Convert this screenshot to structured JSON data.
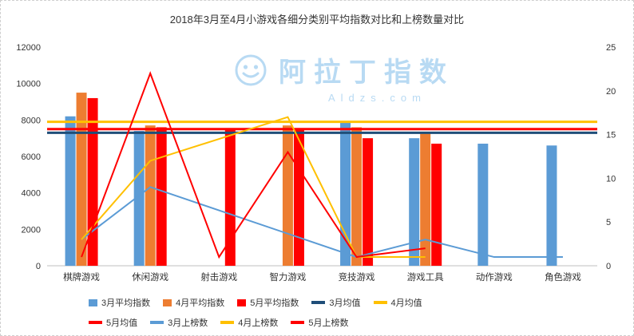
{
  "watermark": {
    "text": "阿拉丁指数",
    "subtext": "Aldzs.com"
  },
  "chart_data": {
    "type": "bar",
    "title": "2018年3月至4月小游戏各细分类别平均指数对比和上榜数量对比",
    "categories": [
      "棋牌游戏",
      "休闲游戏",
      "射击游戏",
      "智力游戏",
      "竞技游戏",
      "游戏工具",
      "动作游戏",
      "角色游戏"
    ],
    "left_axis": {
      "min": 0,
      "max": 12000,
      "step": 2000
    },
    "right_axis": {
      "min": 0,
      "max": 25,
      "step": 5
    },
    "grid": "off",
    "legend_position": "bottom",
    "bar_series": [
      {
        "name": "3月平均指数",
        "color": "#5B9BD5",
        "values": [
          8200,
          7400,
          null,
          null,
          7900,
          7000,
          6700,
          6600
        ]
      },
      {
        "name": "4月平均指数",
        "color": "#ED7D31",
        "values": [
          9500,
          7700,
          null,
          7700,
          7600,
          7300,
          null,
          null
        ]
      },
      {
        "name": "5月平均指数",
        "color": "#FF0000",
        "values": [
          9200,
          7600,
          7500,
          7500,
          7000,
          6700,
          null,
          null
        ]
      }
    ],
    "mean_lines": [
      {
        "name": "3月均值",
        "color": "#1F4E79",
        "value": 7300
      },
      {
        "name": "4月均值",
        "color": "#FFC000",
        "value": 7900
      },
      {
        "name": "5月均值",
        "color": "#FF0000",
        "value": 7500
      }
    ],
    "count_lines": [
      {
        "name": "3月上榜数",
        "color": "#5B9BD5",
        "values": [
          3,
          9,
          null,
          null,
          1,
          3,
          1,
          1
        ]
      },
      {
        "name": "4月上榜数",
        "color": "#FFC000",
        "values": [
          3,
          12,
          null,
          17,
          1,
          1,
          null,
          null
        ]
      },
      {
        "name": "5月上榜数",
        "color": "#FF0000",
        "values": [
          1,
          22,
          1,
          13,
          1,
          2,
          null,
          null
        ]
      }
    ],
    "legend_rows": [
      [
        "3月平均指数",
        "4月平均指数",
        "5月平均指数",
        "3月均值",
        "4月均值"
      ],
      [
        "5月均值",
        "3月上榜数",
        "4月上榜数",
        "5月上榜数"
      ]
    ]
  }
}
